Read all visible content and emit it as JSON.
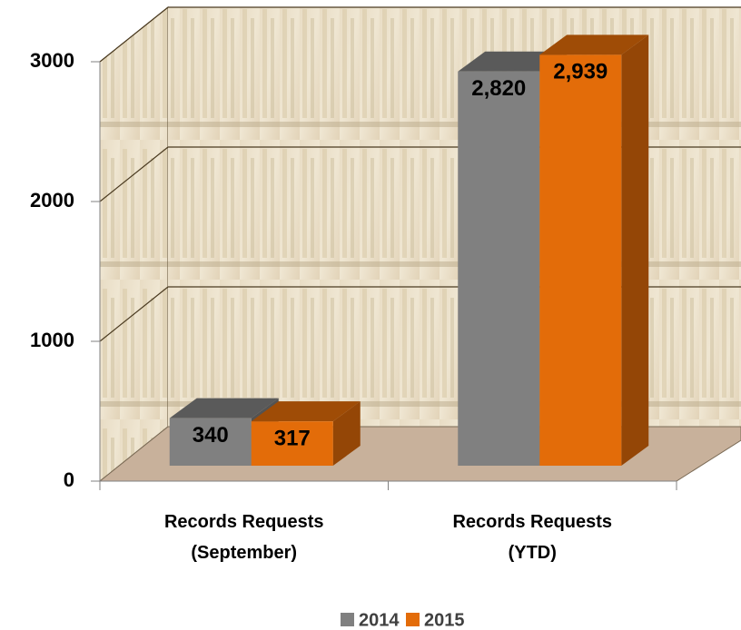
{
  "chart_data": {
    "type": "bar3d",
    "categories": [
      "Records Requests (September)",
      "Records Requests (YTD)"
    ],
    "series": [
      {
        "name": "2014",
        "color": "#808080",
        "values": [
          340,
          2820
        ],
        "value_labels": [
          "340",
          "2,820"
        ]
      },
      {
        "name": "2015",
        "color": "#e36c09",
        "values": [
          317,
          2939
        ],
        "value_labels": [
          "317",
          "2,939"
        ]
      }
    ],
    "ylim": [
      0,
      3000
    ],
    "yticks": [
      0,
      1000,
      2000,
      3000
    ],
    "grid": true,
    "legend": "bottom"
  }
}
